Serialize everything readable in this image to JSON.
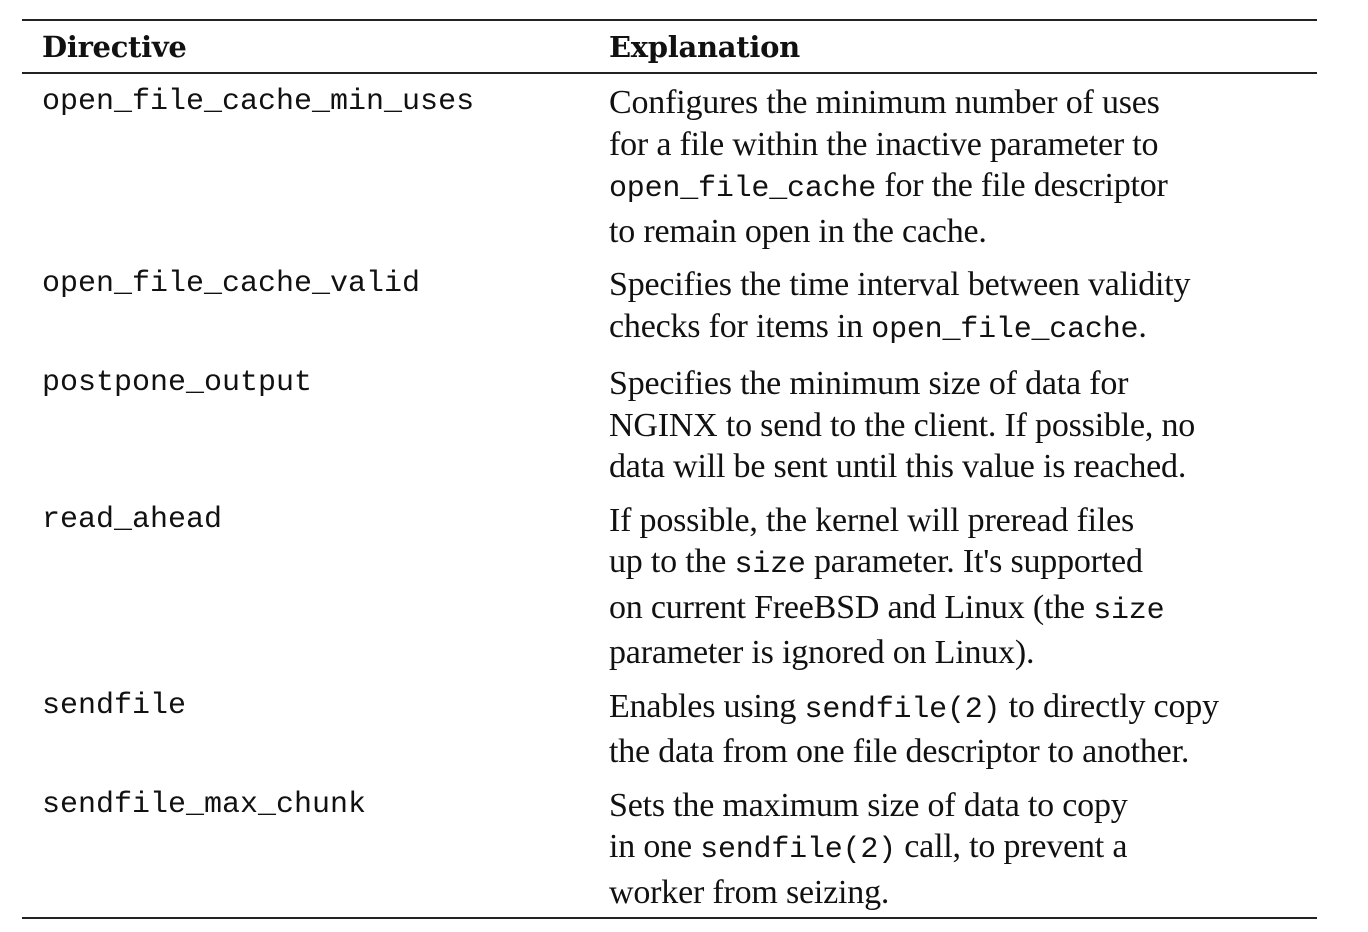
{
  "table": {
    "headers": {
      "directive": "Directive",
      "explanation": "Explanation"
    },
    "rows": [
      {
        "directive": "open_file_cache_min_uses",
        "lines": [
          [
            {
              "t": "Configures the minimum number of uses"
            }
          ],
          [
            {
              "t": "for a file within the inactive parameter to"
            }
          ],
          [
            {
              "t": "open_file_cache",
              "code": true
            },
            {
              "t": " for the  file descriptor"
            }
          ],
          [
            {
              "t": "to remain open in the cache."
            }
          ]
        ]
      },
      {
        "directive": "open_file_cache_valid",
        "lines": [
          [
            {
              "t": "Specifies the time interval between validity"
            }
          ],
          [
            {
              "t": "checks for items in "
            },
            {
              "t": "open_file_cache",
              "code": true
            },
            {
              "t": "."
            }
          ]
        ]
      },
      {
        "directive": "postpone_output",
        "lines": [
          [
            {
              "t": "Specifies the minimum size of data for"
            }
          ],
          [
            {
              "t": "NGINX to send to the client. If possible, no"
            }
          ],
          [
            {
              "t": "data will be sent until this value is reached."
            }
          ]
        ]
      },
      {
        "directive": "read_ahead",
        "lines": [
          [
            {
              "t": "If possible, the kernel will preread files"
            }
          ],
          [
            {
              "t": "up to the "
            },
            {
              "t": "size",
              "code": true
            },
            {
              "t": " parameter. It's supported"
            }
          ],
          [
            {
              "t": "on current FreeBSD and Linux (the "
            },
            {
              "t": "size",
              "code": true
            }
          ],
          [
            {
              "t": "parameter is ignored on Linux)."
            }
          ]
        ]
      },
      {
        "directive": "sendfile",
        "lines": [
          [
            {
              "t": "Enables using "
            },
            {
              "t": "sendfile(2)",
              "code": true
            },
            {
              "t": " to directly copy"
            }
          ],
          [
            {
              "t": "the data from one file descriptor to another."
            }
          ]
        ]
      },
      {
        "directive": "sendfile_max_chunk",
        "lines": [
          [
            {
              "t": "Sets the maximum size of data to copy"
            }
          ],
          [
            {
              "t": "in one "
            },
            {
              "t": "sendfile(2)",
              "code": true
            },
            {
              "t": "  call, to prevent a"
            }
          ],
          [
            {
              "t": "worker from seizing."
            }
          ]
        ]
      }
    ]
  }
}
